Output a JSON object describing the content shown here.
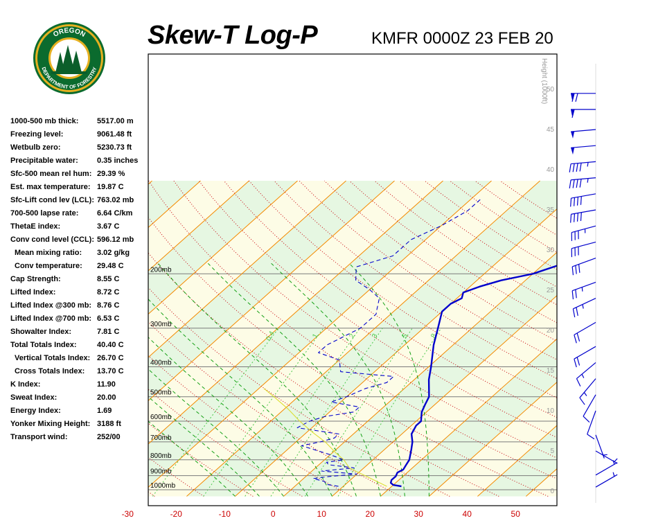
{
  "header": {
    "title": "Skew-T Log-P",
    "station_time": "KMFR 0000Z 23 FEB 20"
  },
  "logo": {
    "top_text": "OREGON",
    "bottom_text": "DEPARTMENT OF FORESTRY",
    "colors": {
      "ring": "#0b6b2e",
      "gold": "#e6b020",
      "tree": "#0b5e2a",
      "sky": "#ffffff"
    }
  },
  "indices": [
    {
      "label": "1000-500 mb thick:",
      "value": "5517.00 m",
      "indent": false
    },
    {
      "label": "Freezing level:",
      "value": "9061.48 ft",
      "indent": false
    },
    {
      "label": "Wetbulb zero:",
      "value": "5230.73 ft",
      "indent": false
    },
    {
      "label": "Precipitable water:",
      "value": "0.35 inches",
      "indent": false
    },
    {
      "label": "Sfc-500 mean rel hum:",
      "value": "29.39 %",
      "indent": false
    },
    {
      "label": "Est. max temperature:",
      "value": "19.87 C",
      "indent": false
    },
    {
      "label": "Sfc-Lift cond lev (LCL):",
      "value": "763.02 mb",
      "indent": false
    },
    {
      "label": "700-500 lapse rate:",
      "value": "6.64 C/km",
      "indent": false
    },
    {
      "label": "ThetaE index:",
      "value": "3.67 C",
      "indent": false
    },
    {
      "label": "Conv cond level (CCL):",
      "value": "596.12 mb",
      "indent": false
    },
    {
      "label": "Mean mixing ratio:",
      "value": "3.02 g/kg",
      "indent": true
    },
    {
      "label": "Conv temperature:",
      "value": "29.48 C",
      "indent": true
    },
    {
      "label": "Cap Strength:",
      "value": "8.55 C",
      "indent": false
    },
    {
      "label": "Lifted Index:",
      "value": "8.72 C",
      "indent": false
    },
    {
      "label": "Lifted Index @300 mb:",
      "value": "8.76 C",
      "indent": false
    },
    {
      "label": "Lifted Index @700 mb:",
      "value": "6.53 C",
      "indent": false
    },
    {
      "label": "Showalter Index:",
      "value": "7.81 C",
      "indent": false
    },
    {
      "label": "Total Totals Index:",
      "value": "40.40 C",
      "indent": false
    },
    {
      "label": "Vertical Totals Index:",
      "value": "26.70 C",
      "indent": true
    },
    {
      "label": "Cross Totals Index:",
      "value": "13.70 C",
      "indent": true
    },
    {
      "label": "K Index:",
      "value": "11.90",
      "indent": false
    },
    {
      "label": "Sweat Index:",
      "value": "20.00",
      "indent": false
    },
    {
      "label": "Energy Index:",
      "value": "1.69",
      "indent": false
    },
    {
      "label": "Yonker Mixing Height:",
      "value": "3188 ft",
      "indent": false
    },
    {
      "label": "Transport wind:",
      "value": "252/00",
      "indent": false
    }
  ],
  "chart_data": {
    "type": "skew-t log-p",
    "temperature_ticks": [
      "-30",
      "-20",
      "-10",
      "0",
      "10",
      "20",
      "30",
      "40",
      "50"
    ],
    "temperature_tick_values": [
      -30,
      -20,
      -10,
      0,
      10,
      20,
      30,
      40,
      50
    ],
    "xlim": [
      -30,
      55
    ],
    "pressure_levels": [
      {
        "p": 200,
        "label": "200mb"
      },
      {
        "p": 300,
        "label": "300mb"
      },
      {
        "p": 400,
        "label": "400mb"
      },
      {
        "p": 500,
        "label": "500mb"
      },
      {
        "p": 600,
        "label": "600mb"
      },
      {
        "p": 700,
        "label": "700mb"
      },
      {
        "p": 800,
        "label": "800mb"
      },
      {
        "p": 900,
        "label": "900mb"
      },
      {
        "p": 1000,
        "label": "1000mb"
      }
    ],
    "plim": [
      100,
      1050
    ],
    "height_axis": {
      "label": "Height (1000ft)",
      "ticks": [
        "0",
        "5",
        "10",
        "15",
        "20",
        "25",
        "30",
        "35",
        "40",
        "45",
        "50"
      ],
      "tick_values": [
        0,
        5,
        10,
        15,
        20,
        25,
        30,
        35,
        40,
        45,
        50
      ]
    },
    "mixing_ratio_labels": [
      "0.4",
      "1",
      "2",
      "3",
      "5",
      "8"
    ],
    "mixing_ratio_values": [
      0.4,
      1,
      2,
      3,
      5,
      8
    ],
    "series": [
      {
        "role": "temperature",
        "style": "solid",
        "color": "#0000cc",
        "points": [
          {
            "p": 975,
            "t": 22
          },
          {
            "p": 965,
            "t": 20
          },
          {
            "p": 950,
            "t": 19
          },
          {
            "p": 930,
            "t": 18.5
          },
          {
            "p": 905,
            "t": 18.5
          },
          {
            "p": 880,
            "t": 18
          },
          {
            "p": 860,
            "t": 18.5
          },
          {
            "p": 830,
            "t": 18
          },
          {
            "p": 800,
            "t": 17.5
          },
          {
            "p": 740,
            "t": 15.5
          },
          {
            "p": 700,
            "t": 14
          },
          {
            "p": 660,
            "t": 12
          },
          {
            "p": 620,
            "t": 11
          },
          {
            "p": 600,
            "t": 11
          },
          {
            "p": 560,
            "t": 9
          },
          {
            "p": 530,
            "t": 8
          },
          {
            "p": 500,
            "t": 7
          },
          {
            "p": 440,
            "t": 3
          },
          {
            "p": 400,
            "t": 0.5
          },
          {
            "p": 340,
            "t": -4
          },
          {
            "p": 300,
            "t": -7
          },
          {
            "p": 265,
            "t": -10
          },
          {
            "p": 250,
            "t": -10
          },
          {
            "p": 240,
            "t": -9
          },
          {
            "p": 230,
            "t": -10
          },
          {
            "p": 220,
            "t": -8
          },
          {
            "p": 210,
            "t": -5
          },
          {
            "p": 200,
            "t": 0
          },
          {
            "p": 185,
            "t": 4
          },
          {
            "p": 170,
            "t": 8
          },
          {
            "p": 160,
            "t": 11
          },
          {
            "p": 145,
            "t": 17
          },
          {
            "p": 135,
            "t": 20
          },
          {
            "p": 125,
            "t": 22
          },
          {
            "p": 115,
            "t": 24
          }
        ]
      },
      {
        "role": "dewpoint",
        "style": "dashed",
        "color": "#0000cc",
        "points": [
          {
            "p": 975,
            "t": 9
          },
          {
            "p": 960,
            "t": 6
          },
          {
            "p": 940,
            "t": 5
          },
          {
            "p": 920,
            "t": 2
          },
          {
            "p": 905,
            "t": 5
          },
          {
            "p": 890,
            "t": 10
          },
          {
            "p": 870,
            "t": 2
          },
          {
            "p": 850,
            "t": 8
          },
          {
            "p": 830,
            "t": 2
          },
          {
            "p": 815,
            "t": 1
          },
          {
            "p": 800,
            "t": 4
          },
          {
            "p": 770,
            "t": 0
          },
          {
            "p": 720,
            "t": -8
          },
          {
            "p": 700,
            "t": -5
          },
          {
            "p": 680,
            "t": -3
          },
          {
            "p": 660,
            "t": -3
          },
          {
            "p": 630,
            "t": -13
          },
          {
            "p": 600,
            "t": -12
          },
          {
            "p": 580,
            "t": -10
          },
          {
            "p": 560,
            "t": -5
          },
          {
            "p": 540,
            "t": -5
          },
          {
            "p": 520,
            "t": -12
          },
          {
            "p": 500,
            "t": -10
          },
          {
            "p": 470,
            "t": -8
          },
          {
            "p": 450,
            "t": -5
          },
          {
            "p": 430,
            "t": -5
          },
          {
            "p": 415,
            "t": -17
          },
          {
            "p": 380,
            "t": -20
          },
          {
            "p": 360,
            "t": -26
          },
          {
            "p": 340,
            "t": -26
          },
          {
            "p": 300,
            "t": -23
          },
          {
            "p": 285,
            "t": -23
          },
          {
            "p": 270,
            "t": -23
          },
          {
            "p": 260,
            "t": -24
          },
          {
            "p": 240,
            "t": -26
          },
          {
            "p": 225,
            "t": -30
          },
          {
            "p": 210,
            "t": -35
          },
          {
            "p": 190,
            "t": -38
          },
          {
            "p": 175,
            "t": -33
          },
          {
            "p": 155,
            "t": -33
          },
          {
            "p": 140,
            "t": -30
          },
          {
            "p": 125,
            "t": -28
          },
          {
            "p": 115,
            "t": -28
          }
        ]
      },
      {
        "role": "parcel",
        "style": "solid",
        "color": "#dddd33",
        "points": [
          {
            "p": 975,
            "t": 19
          },
          {
            "p": 900,
            "t": 12
          },
          {
            "p": 850,
            "t": 7
          },
          {
            "p": 800,
            "t": 4
          },
          {
            "p": 763,
            "t": 1
          },
          {
            "p": 700,
            "t": -4
          },
          {
            "p": 650,
            "t": -9
          },
          {
            "p": 600,
            "t": -14
          },
          {
            "p": 550,
            "t": -19
          },
          {
            "p": 500,
            "t": -25
          },
          {
            "p": 470,
            "t": -29
          }
        ]
      }
    ],
    "wind_barbs": {
      "color": "#0000cc",
      "levels": [
        {
          "h": 49.5,
          "dir": 270,
          "spd": 70
        },
        {
          "h": 47.5,
          "dir": 270,
          "spd": 60
        },
        {
          "h": 45,
          "dir": 265,
          "spd": 50
        },
        {
          "h": 43,
          "dir": 265,
          "spd": 50
        },
        {
          "h": 41,
          "dir": 265,
          "spd": 45
        },
        {
          "h": 39,
          "dir": 265,
          "spd": 45
        },
        {
          "h": 37,
          "dir": 260,
          "spd": 40
        },
        {
          "h": 35,
          "dir": 260,
          "spd": 40
        },
        {
          "h": 33,
          "dir": 255,
          "spd": 35
        },
        {
          "h": 31,
          "dir": 255,
          "spd": 30
        },
        {
          "h": 29,
          "dir": 250,
          "spd": 30
        },
        {
          "h": 26,
          "dir": 250,
          "spd": 25
        },
        {
          "h": 24,
          "dir": 245,
          "spd": 25
        },
        {
          "h": 21,
          "dir": 240,
          "spd": 20
        },
        {
          "h": 18,
          "dir": 240,
          "spd": 20
        },
        {
          "h": 16,
          "dir": 230,
          "spd": 15
        },
        {
          "h": 14,
          "dir": 220,
          "spd": 15
        },
        {
          "h": 12,
          "dir": 210,
          "spd": 10
        },
        {
          "h": 10,
          "dir": 200,
          "spd": 10
        },
        {
          "h": 7,
          "dir": 160,
          "spd": 5
        },
        {
          "h": 5,
          "dir": 120,
          "spd": 5
        },
        {
          "h": 2,
          "dir": 60,
          "spd": 5
        },
        {
          "h": 0.5,
          "dir": 60,
          "spd": 5
        }
      ]
    },
    "colors": {
      "isotherm": "#f58a00",
      "dry_adiabat": "#c8000a",
      "moist_adiabat": "#15a015",
      "mixing_ratio": "#4cc84c",
      "isobar": "#7a7a7a",
      "band_green": "#e6f7e2",
      "band_yellow": "#fdfce6",
      "tick_label": "#cc0000",
      "height_label": "#999999"
    }
  }
}
